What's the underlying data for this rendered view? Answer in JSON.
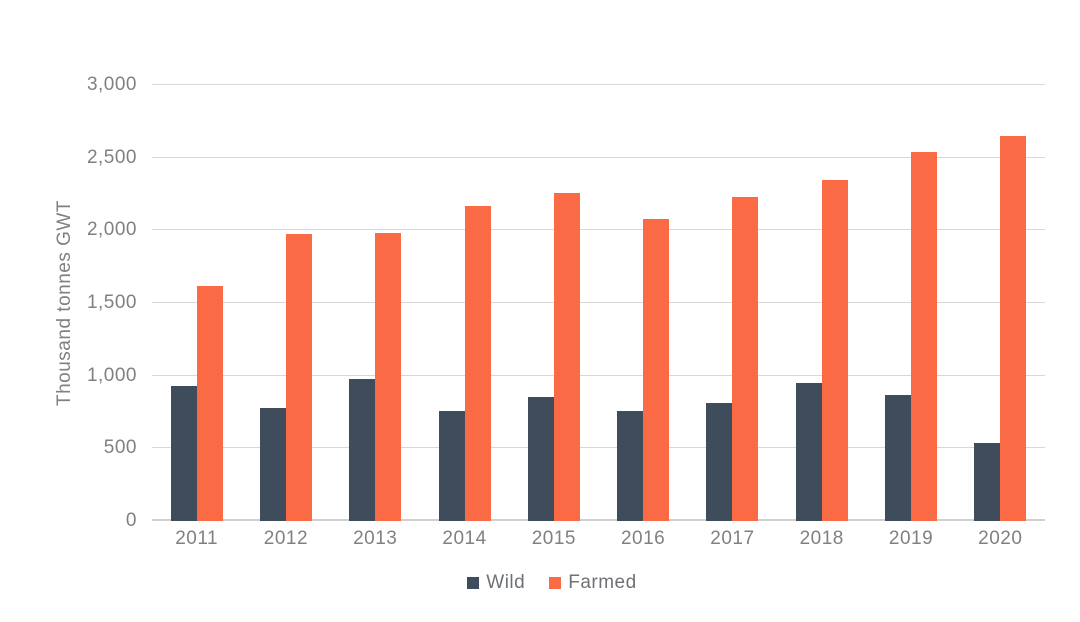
{
  "colors": {
    "background": "#FFFFFF",
    "wild": "#3E4C5B",
    "farmed": "#FA6A44",
    "grid": "#D8D8D8",
    "grid_baseline": "#D0D0D0",
    "axis_text": "#7E8184",
    "legend_text": "#6E7276"
  },
  "chart_data": {
    "type": "bar",
    "title": "",
    "xlabel": "",
    "ylabel": "Thousand tonnes GWT",
    "categories": [
      "2011",
      "2012",
      "2013",
      "2014",
      "2015",
      "2016",
      "2017",
      "2018",
      "2019",
      "2020"
    ],
    "series": [
      {
        "name": "Wild",
        "color_key": "wild",
        "values": [
          930,
          775,
          975,
          755,
          855,
          755,
          815,
          950,
          870,
          540
        ]
      },
      {
        "name": "Farmed",
        "color_key": "farmed",
        "values": [
          1620,
          1975,
          1985,
          2165,
          2255,
          2075,
          2230,
          2350,
          2540,
          2650
        ]
      }
    ],
    "ylim": [
      0,
      3000
    ],
    "yticks": [
      0,
      500,
      1000,
      1500,
      2000,
      2500,
      3000
    ],
    "ytick_labels": [
      "0",
      "500",
      "1,000",
      "1,500",
      "2,000",
      "2,500",
      "3,000"
    ],
    "grid": true,
    "legend_position": "bottom"
  }
}
